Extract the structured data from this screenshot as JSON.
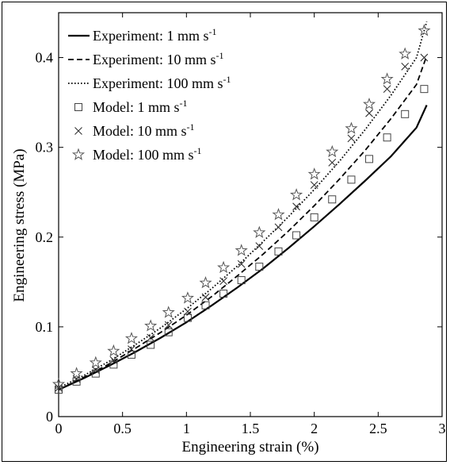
{
  "chart_data": {
    "type": "line",
    "title": "",
    "xlabel": "Engineering strain (%)",
    "ylabel": "Engineering stress (MPa)",
    "xlim": [
      0,
      3
    ],
    "ylim": [
      0,
      0.45
    ],
    "xticks": [
      0,
      0.5,
      1,
      1.5,
      2,
      2.5,
      3
    ],
    "xtick_labels": [
      "0",
      "0.5",
      "1",
      "1.5",
      "2",
      "2.5",
      "3"
    ],
    "yticks": [
      0,
      0.1,
      0.2,
      0.3,
      0.4
    ],
    "ytick_labels": [
      "0",
      "0.1",
      "0.2",
      "0.3",
      "0.4"
    ],
    "grid": false,
    "legend_position": "top-left",
    "series": [
      {
        "name": "Experiment: 1 mm s-1",
        "legend_text": "Experiment: 1 mm s",
        "legend_sup": "-1",
        "kind": "line",
        "style": "solid",
        "x": [
          0,
          0.2,
          0.4,
          0.6,
          0.8,
          1.0,
          1.2,
          1.4,
          1.6,
          1.8,
          2.0,
          2.2,
          2.4,
          2.6,
          2.8,
          2.88
        ],
        "y": [
          0.03,
          0.043,
          0.057,
          0.072,
          0.088,
          0.105,
          0.124,
          0.144,
          0.165,
          0.188,
          0.212,
          0.237,
          0.263,
          0.29,
          0.322,
          0.347
        ]
      },
      {
        "name": "Experiment: 10 mm s-1",
        "legend_text": "Experiment: 10 mm s",
        "legend_sup": "-1",
        "kind": "line",
        "style": "dashed",
        "x": [
          0,
          0.2,
          0.4,
          0.6,
          0.8,
          1.0,
          1.2,
          1.4,
          1.6,
          1.8,
          2.0,
          2.2,
          2.4,
          2.6,
          2.8,
          2.88
        ],
        "y": [
          0.03,
          0.044,
          0.059,
          0.076,
          0.094,
          0.113,
          0.134,
          0.157,
          0.181,
          0.207,
          0.235,
          0.265,
          0.297,
          0.332,
          0.37,
          0.402
        ]
      },
      {
        "name": "Experiment: 100 mm s-1",
        "legend_text": "Experiment: 100 mm s",
        "legend_sup": "-1",
        "kind": "line",
        "style": "dotted",
        "x": [
          0,
          0.2,
          0.4,
          0.6,
          0.8,
          1.0,
          1.2,
          1.4,
          1.6,
          1.8,
          2.0,
          2.2,
          2.4,
          2.6,
          2.8,
          2.88
        ],
        "y": [
          0.032,
          0.046,
          0.062,
          0.08,
          0.099,
          0.12,
          0.143,
          0.168,
          0.195,
          0.223,
          0.253,
          0.285,
          0.32,
          0.358,
          0.4,
          0.44
        ]
      },
      {
        "name": "Model: 1 mm s-1",
        "legend_text": "Model: 1 mm s",
        "legend_sup": "-1",
        "kind": "marker",
        "marker": "square",
        "x": [
          0,
          0.14,
          0.29,
          0.43,
          0.57,
          0.72,
          0.86,
          1.01,
          1.15,
          1.29,
          1.43,
          1.57,
          1.72,
          1.86,
          2.0,
          2.14,
          2.29,
          2.43,
          2.57,
          2.71,
          2.86
        ],
        "y": [
          0.03,
          0.039,
          0.048,
          0.058,
          0.069,
          0.08,
          0.094,
          0.11,
          0.124,
          0.137,
          0.152,
          0.167,
          0.184,
          0.202,
          0.222,
          0.242,
          0.264,
          0.287,
          0.311,
          0.337,
          0.365
        ]
      },
      {
        "name": "Model: 10 mm s-1",
        "legend_text": "Model: 10 mm s",
        "legend_sup": "-1",
        "kind": "marker",
        "marker": "x",
        "x": [
          0,
          0.14,
          0.29,
          0.43,
          0.57,
          0.72,
          0.86,
          1.01,
          1.15,
          1.29,
          1.43,
          1.57,
          1.72,
          1.86,
          2.0,
          2.14,
          2.29,
          2.43,
          2.57,
          2.71,
          2.86
        ],
        "y": [
          0.032,
          0.042,
          0.052,
          0.063,
          0.075,
          0.088,
          0.102,
          0.117,
          0.133,
          0.151,
          0.17,
          0.19,
          0.211,
          0.234,
          0.258,
          0.283,
          0.31,
          0.338,
          0.365,
          0.39,
          0.4
        ]
      },
      {
        "name": "Model: 100 mm s-1",
        "legend_text": "Model: 100 mm s",
        "legend_sup": "-1",
        "kind": "marker",
        "marker": "star",
        "x": [
          0,
          0.14,
          0.29,
          0.43,
          0.57,
          0.72,
          0.86,
          1.01,
          1.15,
          1.29,
          1.43,
          1.57,
          1.72,
          1.86,
          2.0,
          2.14,
          2.29,
          2.43,
          2.57,
          2.71,
          2.86
        ],
        "y": [
          0.036,
          0.048,
          0.06,
          0.073,
          0.087,
          0.101,
          0.116,
          0.132,
          0.149,
          0.166,
          0.185,
          0.205,
          0.225,
          0.247,
          0.27,
          0.295,
          0.321,
          0.348,
          0.376,
          0.404,
          0.43
        ]
      }
    ]
  }
}
